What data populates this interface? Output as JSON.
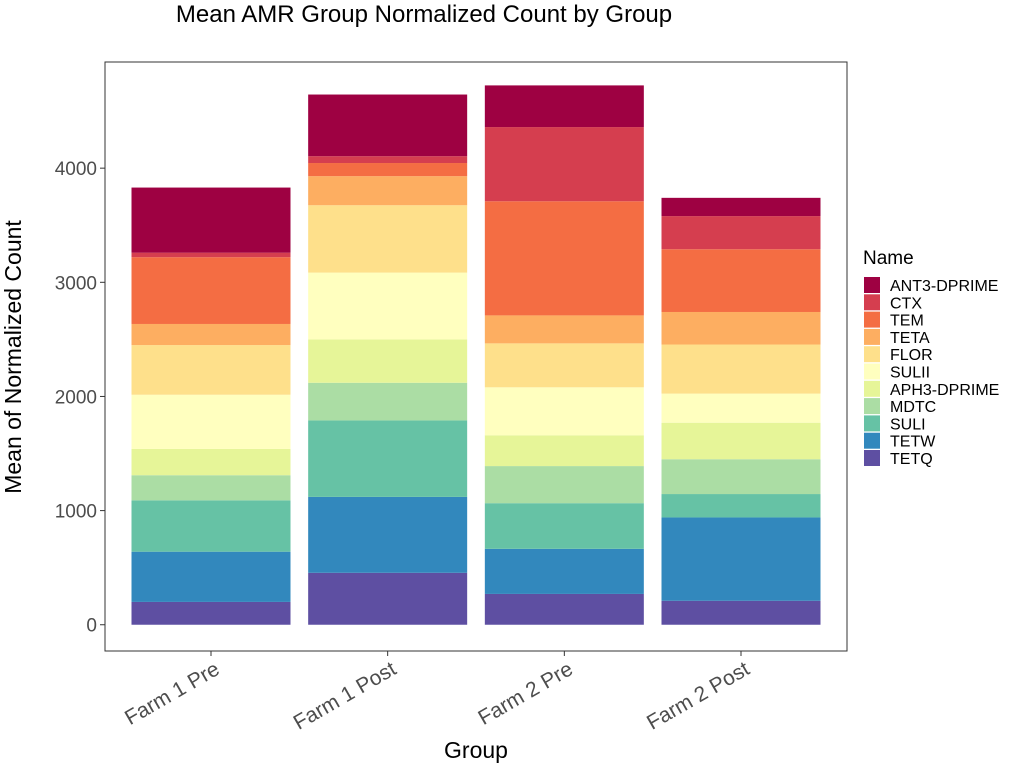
{
  "chart_data": {
    "type": "bar",
    "stacked": true,
    "title": "Mean AMR Group Normalized Count by Group",
    "xlabel": "Group",
    "ylabel": "Mean of Normalized Count",
    "categories": [
      "Farm 1 Pre",
      "Farm 1 Post",
      "Farm 2 Pre",
      "Farm 2 Post"
    ],
    "ylim": [
      -230,
      4930
    ],
    "yticks": [
      0,
      1000,
      2000,
      3000,
      4000
    ],
    "legend": {
      "title": "Name",
      "position": "right"
    },
    "series": [
      {
        "name": "TETQ",
        "color": "#5E4FA2",
        "values": [
          200,
          455,
          270,
          210
        ]
      },
      {
        "name": "TETW",
        "color": "#3288BD",
        "values": [
          440,
          665,
          395,
          730
        ]
      },
      {
        "name": "SULI",
        "color": "#66C2A5",
        "values": [
          450,
          670,
          400,
          205
        ]
      },
      {
        "name": "MDTC",
        "color": "#ABDDA4",
        "values": [
          220,
          330,
          325,
          305
        ]
      },
      {
        "name": "APH3-DPRIME",
        "color": "#E6F598",
        "values": [
          230,
          380,
          270,
          320
        ]
      },
      {
        "name": "SULII",
        "color": "#FFFFBF",
        "values": [
          475,
          585,
          420,
          255
        ]
      },
      {
        "name": "FLOR",
        "color": "#FEE08B",
        "values": [
          435,
          590,
          385,
          430
        ]
      },
      {
        "name": "TETA",
        "color": "#FDAE61",
        "values": [
          185,
          255,
          245,
          285
        ]
      },
      {
        "name": "TEM",
        "color": "#F46D43",
        "values": [
          585,
          115,
          1000,
          550
        ]
      },
      {
        "name": "CTX",
        "color": "#D53E4F",
        "values": [
          40,
          60,
          650,
          290
        ]
      },
      {
        "name": "ANT3-DPRIME",
        "color": "#9E0142",
        "values": [
          570,
          540,
          365,
          160
        ]
      }
    ]
  }
}
